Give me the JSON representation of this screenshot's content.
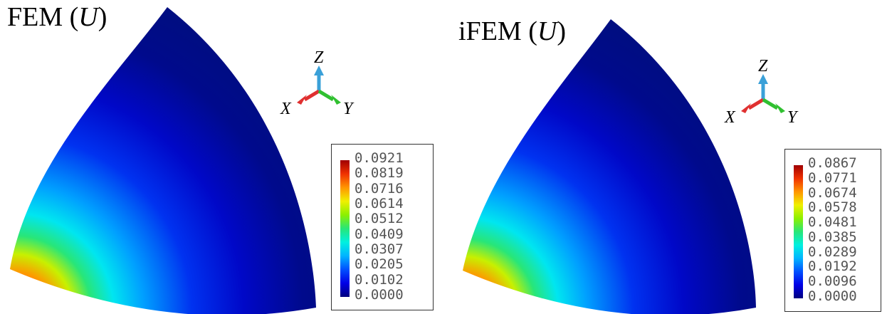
{
  "panels": [
    {
      "title_prefix": "FEM (",
      "title_var": "U",
      "title_suffix": ")",
      "legend": [
        "0.0921",
        "0.0819",
        "0.0716",
        "0.0614",
        "0.0512",
        "0.0409",
        "0.0307",
        "0.0205",
        "0.0102",
        "0.0000"
      ],
      "axes": {
        "x": "X",
        "y": "Y",
        "z": "Z"
      }
    },
    {
      "title_prefix": "iFEM (",
      "title_var": "U",
      "title_suffix": ")",
      "legend": [
        "0.0867",
        "0.0771",
        "0.0674",
        "0.0578",
        "0.0481",
        "0.0385",
        "0.0289",
        "0.0192",
        "0.0096",
        "0.0000"
      ],
      "axes": {
        "x": "X",
        "y": "Y",
        "z": "Z"
      }
    }
  ],
  "colors": {
    "colormap": [
      "#00007f",
      "#0000e6",
      "#0050ff",
      "#00b4ff",
      "#00f0e0",
      "#28e678",
      "#8cf000",
      "#f0f000",
      "#ff9600",
      "#f03200",
      "#a00000"
    ],
    "axis_x": "#e03030",
    "axis_y": "#30c030",
    "axis_z": "#3aa0d8"
  }
}
